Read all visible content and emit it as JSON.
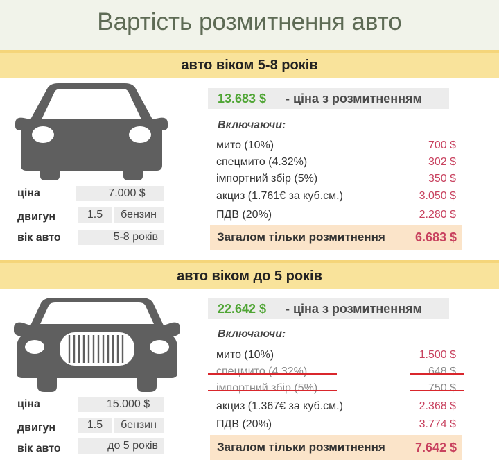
{
  "title": "Вартість розмитнення авто",
  "section1": {
    "heading": "авто віком 5-8 років",
    "specs": {
      "price_label": "ціна",
      "price_value": "7.000 $",
      "engine_label": "двигун",
      "engine_volume": "1.5",
      "engine_fuel": "бензин",
      "age_label": "вік авто",
      "age_value": "5-8 років"
    },
    "total_price": "13.683 $",
    "total_price_label": "- ціна з розмитненням",
    "including_label": "Включаючи:",
    "items": [
      {
        "label": "мито (10%)",
        "value": "700 $"
      },
      {
        "label": "спецмито (4.32%)",
        "value": "302 $"
      },
      {
        "label": "імпортний збір (5%)",
        "value": "350 $"
      },
      {
        "label": "акциз (1.761€ за куб.см.)",
        "value": "3.050 $"
      },
      {
        "label": "ПДВ (20%)",
        "value": "2.280 $"
      }
    ],
    "customs_total_label": "Загалом тільки розмитнення",
    "customs_total_value": "6.683 $"
  },
  "section2": {
    "heading": "авто віком до 5 років",
    "specs": {
      "price_label": "ціна",
      "price_value": "15.000 $",
      "engine_label": "двигун",
      "engine_volume": "1.5",
      "engine_fuel": "бензин",
      "age_label": "вік авто",
      "age_value": "до 5 років"
    },
    "total_price": "22.642 $",
    "total_price_label": "- ціна з розмитненням",
    "including_label": "Включаючи:",
    "items": [
      {
        "label": "мито (10%)",
        "value": "1.500 $"
      },
      {
        "label": "спецмито (4.32%)",
        "value": "648 $",
        "struck": true
      },
      {
        "label": "імпортний збір (5%)",
        "value": "750 $",
        "struck": true
      },
      {
        "label": "акциз (1.367€ за куб.см.)",
        "value": "2.368 $"
      },
      {
        "label": "ПДВ (20%)",
        "value": "3.774 $"
      }
    ],
    "customs_total_label": "Загалом тільки розмитнення",
    "customs_total_value": "7.642 $"
  },
  "colors": {
    "band": "#f9e39b",
    "accent_green": "#4fa534",
    "value_pink": "#c8425f",
    "total_bg": "#fbe4c9",
    "strike_red": "#d9262c"
  },
  "icons": [
    "car-front-icon",
    "luxury-car-front-icon"
  ]
}
